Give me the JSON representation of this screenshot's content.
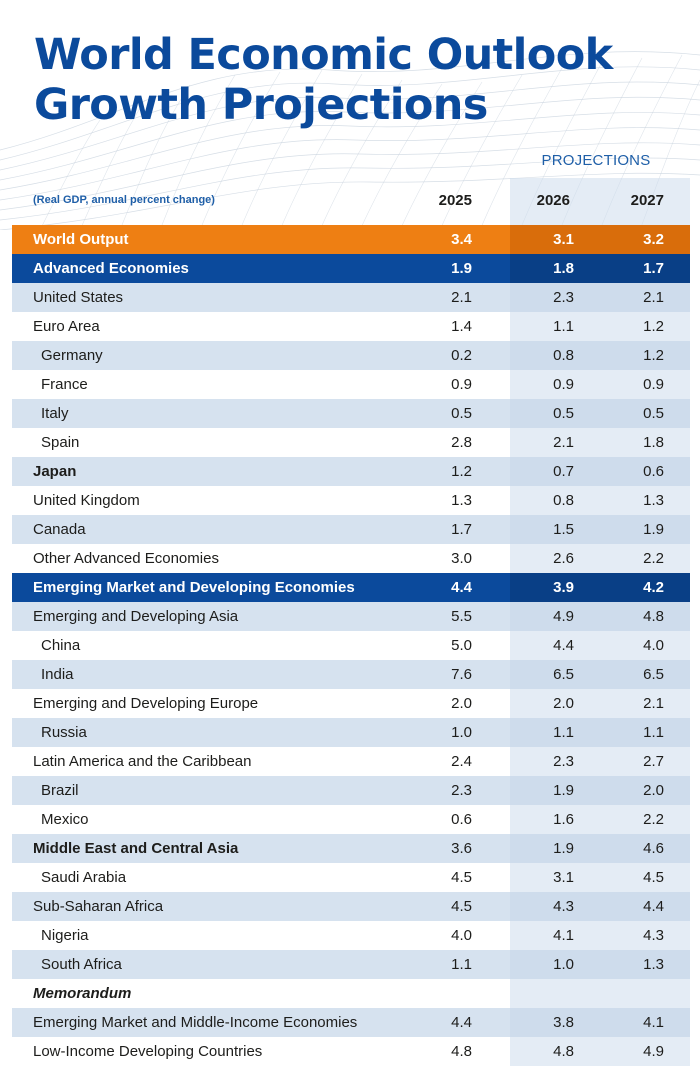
{
  "title_line1": "World Economic Outlook",
  "title_line2": "Growth Projections",
  "projections_label": "PROJECTIONS",
  "note": "(Real GDP, annual percent change)",
  "years": [
    "2025",
    "2026",
    "2027"
  ],
  "colors": {
    "title_blue": "#0b4a9c",
    "world_orange": "#ee7f13",
    "group_blue": "#0b4a9c",
    "row_shade": "#c4d5e8"
  },
  "rows": [
    {
      "label": "World Output",
      "v": [
        "3.4",
        "3.1",
        "3.2"
      ]
    },
    {
      "label": "Advanced Economies",
      "v": [
        "1.9",
        "1.8",
        "1.7"
      ]
    },
    {
      "label": "United States",
      "v": [
        "2.1",
        "2.3",
        "2.1"
      ]
    },
    {
      "label": "Euro Area",
      "v": [
        "1.4",
        "1.1",
        "1.2"
      ]
    },
    {
      "label": "Germany",
      "v": [
        "0.2",
        "0.8",
        "1.2"
      ]
    },
    {
      "label": "France",
      "v": [
        "0.9",
        "0.9",
        "0.9"
      ]
    },
    {
      "label": "Italy",
      "v": [
        "0.5",
        "0.5",
        "0.5"
      ]
    },
    {
      "label": "Spain",
      "v": [
        "2.8",
        "2.1",
        "1.8"
      ]
    },
    {
      "label": "Japan",
      "v": [
        "1.2",
        "0.7",
        "0.6"
      ]
    },
    {
      "label": "United Kingdom",
      "v": [
        "1.3",
        "0.8",
        "1.3"
      ]
    },
    {
      "label": "Canada",
      "v": [
        "1.7",
        "1.5",
        "1.9"
      ]
    },
    {
      "label": "Other Advanced Economies",
      "v": [
        "3.0",
        "2.6",
        "2.2"
      ]
    },
    {
      "label": "Emerging Market and Developing Economies",
      "v": [
        "4.4",
        "3.9",
        "4.2"
      ]
    },
    {
      "label": "Emerging and Developing Asia",
      "v": [
        "5.5",
        "4.9",
        "4.8"
      ]
    },
    {
      "label": "China",
      "v": [
        "5.0",
        "4.4",
        "4.0"
      ]
    },
    {
      "label": "India",
      "v": [
        "7.6",
        "6.5",
        "6.5"
      ]
    },
    {
      "label": "Emerging and Developing Europe",
      "v": [
        "2.0",
        "2.0",
        "2.1"
      ]
    },
    {
      "label": "Russia",
      "v": [
        "1.0",
        "1.1",
        "1.1"
      ]
    },
    {
      "label": "Latin America and the Caribbean",
      "v": [
        "2.4",
        "2.3",
        "2.7"
      ]
    },
    {
      "label": "Brazil",
      "v": [
        "2.3",
        "1.9",
        "2.0"
      ]
    },
    {
      "label": "Mexico",
      "v": [
        "0.6",
        "1.6",
        "2.2"
      ]
    },
    {
      "label": "Middle East and Central Asia",
      "v": [
        "3.6",
        "1.9",
        "4.6"
      ]
    },
    {
      "label": "Saudi Arabia",
      "v": [
        "4.5",
        "3.1",
        "4.5"
      ]
    },
    {
      "label": "Sub-Saharan Africa",
      "v": [
        "4.5",
        "4.3",
        "4.4"
      ]
    },
    {
      "label": "Nigeria",
      "v": [
        "4.0",
        "4.1",
        "4.3"
      ]
    },
    {
      "label": "South Africa",
      "v": [
        "1.1",
        "1.0",
        "1.3"
      ]
    },
    {
      "label": "Memorandum",
      "v": [
        "",
        "",
        ""
      ]
    },
    {
      "label": "Emerging Market and Middle-Income Economies",
      "v": [
        "4.4",
        "3.8",
        "4.1"
      ]
    },
    {
      "label": "Low-Income Developing Countries",
      "v": [
        "4.8",
        "4.8",
        "4.9"
      ]
    }
  ]
}
